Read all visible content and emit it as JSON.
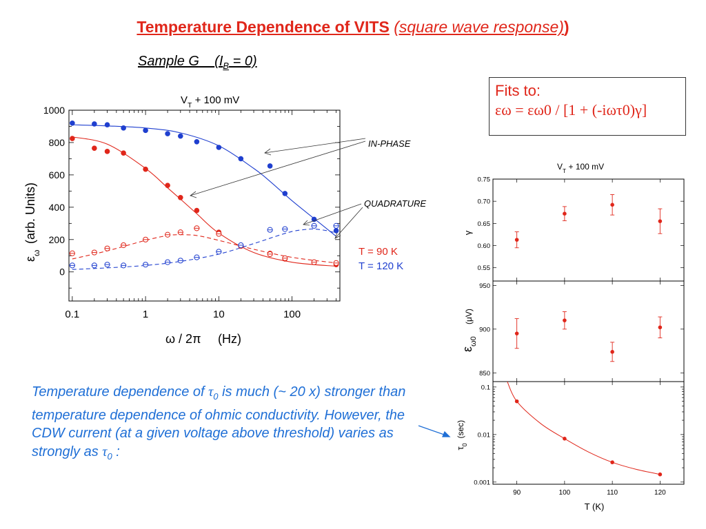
{
  "header": {
    "title_main": "Temperature Dependence of VITS",
    "title_sub": "(square wave response)",
    "title_close": ")",
    "sample": "Sample G",
    "sample_cond": "(I",
    "sample_cond_sub": "B",
    "sample_cond_end": " = 0)"
  },
  "fits": {
    "line1": "Fits to:",
    "formula": "εω = εω0 / [1 + (-iωτ0)γ]"
  },
  "note": {
    "text1": "Temperature dependence of ",
    "tau": "τ",
    "sub0": "0",
    "text2": " is much  (~ 20 x) stronger than temperature dependence of ohmic conductivity.  However, the CDW current (at a given voltage above threshold) varies as strongly as ",
    "text3": " :"
  },
  "colors": {
    "red": "#e0261a",
    "blue": "#1f3fcf",
    "note_blue": "#1f6fd6"
  },
  "chart_data": [
    {
      "type": "scatter",
      "title": "VT + 100 mV",
      "title_main": "V",
      "title_sub": "T",
      "title_rest": " + 100 mV",
      "xlabel": "ω / 2π",
      "xlabel_unit": "(Hz)",
      "ylabel": "εω   (arb. Units)",
      "ylabel_sym": "ε",
      "ylabel_sym_sub": "ω",
      "ylabel_text": "(arb. Units)",
      "xscale": "log",
      "xlim": [
        0.09,
        450
      ],
      "ylim": [
        -180,
        1000
      ],
      "xticks": [
        0.1,
        1,
        10,
        100
      ],
      "xtick_labels": [
        "0.1",
        "1",
        "10",
        "100"
      ],
      "yticks": [
        0,
        200,
        400,
        600,
        800,
        1000
      ],
      "ytick_labels": [
        "0",
        "200",
        "400",
        "600",
        "800",
        "1000"
      ],
      "annotations": {
        "in_phase": "IN-PHASE",
        "quadrature": "QUADRATURE"
      },
      "legend": [
        {
          "label": "T = 90 K",
          "color": "#e0261a"
        },
        {
          "label": "T = 120 K",
          "color": "#1f3fcf"
        }
      ],
      "series": [
        {
          "name": "T = 90 K",
          "component": "in-phase",
          "color": "#e0261a",
          "marker": "filled",
          "x": [
            0.1,
            0.2,
            0.3,
            0.5,
            1,
            2,
            3,
            5,
            10,
            20,
            50,
            80,
            200,
            400
          ],
          "y": [
            825,
            765,
            745,
            735,
            635,
            535,
            460,
            380,
            245,
            160,
            115,
            80,
            60,
            45
          ]
        },
        {
          "name": "T = 90 K",
          "component": "quadrature",
          "color": "#e0261a",
          "marker": "open",
          "x": [
            0.1,
            0.2,
            0.3,
            0.5,
            1,
            2,
            3,
            5,
            10,
            20,
            50,
            80,
            200,
            400
          ],
          "y": [
            115,
            120,
            145,
            165,
            200,
            230,
            245,
            270,
            235,
            160,
            110,
            85,
            60,
            55
          ]
        },
        {
          "name": "T = 120 K",
          "component": "in-phase",
          "color": "#1f3fcf",
          "marker": "filled",
          "x": [
            0.1,
            0.2,
            0.3,
            0.5,
            1,
            2,
            3,
            5,
            10,
            20,
            50,
            80,
            200,
            400
          ],
          "y": [
            920,
            915,
            910,
            890,
            875,
            855,
            840,
            805,
            770,
            700,
            655,
            485,
            325,
            255
          ]
        },
        {
          "name": "T = 120 K",
          "component": "quadrature",
          "color": "#1f3fcf",
          "marker": "open",
          "x": [
            0.1,
            0.2,
            0.3,
            0.5,
            1,
            2,
            3,
            5,
            10,
            20,
            50,
            80,
            200,
            400
          ],
          "y": [
            40,
            40,
            45,
            40,
            45,
            60,
            70,
            90,
            125,
            165,
            260,
            265,
            285,
            285
          ]
        }
      ],
      "fit_curves": [
        {
          "name": "T = 90 K",
          "component": "in-phase",
          "color": "#e0261a",
          "style": "solid",
          "x": [
            0.1,
            0.3,
            1,
            2,
            3,
            5,
            10,
            30,
            100,
            400
          ],
          "y": [
            835,
            790,
            640,
            520,
            450,
            360,
            240,
            120,
            60,
            35
          ]
        },
        {
          "name": "T = 90 K",
          "component": "quadrature",
          "color": "#e0261a",
          "style": "dashed",
          "x": [
            0.1,
            0.3,
            1,
            2,
            3,
            5,
            10,
            30,
            100,
            400
          ],
          "y": [
            80,
            130,
            195,
            225,
            230,
            225,
            195,
            140,
            90,
            55
          ]
        },
        {
          "name": "T = 120 K",
          "component": "in-phase",
          "color": "#1f3fcf",
          "style": "solid",
          "x": [
            0.1,
            0.3,
            1,
            3,
            10,
            30,
            50,
            100,
            200,
            400
          ],
          "y": [
            910,
            903,
            890,
            860,
            780,
            640,
            560,
            440,
            330,
            220
          ]
        },
        {
          "name": "T = 120 K",
          "component": "quadrature",
          "color": "#1f3fcf",
          "style": "dashed",
          "x": [
            0.1,
            0.3,
            1,
            3,
            10,
            30,
            60,
            100,
            150,
            200,
            300,
            400
          ],
          "y": [
            15,
            25,
            40,
            65,
            110,
            175,
            220,
            250,
            262,
            265,
            255,
            240
          ]
        }
      ]
    },
    {
      "type": "scatter",
      "title": "VT + 100 mV",
      "title_main": "V",
      "title_sub": "T",
      "title_rest": " + 100 mV",
      "xlabel": "T  (K)",
      "xlim": [
        85,
        125
      ],
      "xticks": [
        90,
        100,
        110,
        120
      ],
      "xtick_labels": [
        "90",
        "100",
        "110",
        "120"
      ],
      "color": "#e0261a",
      "panels": [
        {
          "name": "gamma",
          "ylabel": "γ",
          "ylim": [
            0.52,
            0.75
          ],
          "yticks": [
            0.55,
            0.6,
            0.65,
            0.7,
            0.75
          ],
          "ytick_labels": [
            "0.55",
            "0.60",
            "0.65",
            "0.70",
            "0.75"
          ],
          "x": [
            90,
            100,
            110,
            120
          ],
          "y": [
            0.613,
            0.672,
            0.692,
            0.655
          ],
          "yerr": [
            0.018,
            0.016,
            0.023,
            0.028
          ]
        },
        {
          "name": "eps0",
          "ylabel": "εω0   (μV)",
          "ylabel_sym": "ε",
          "ylabel_sym_sub": "ω0",
          "ylabel_unit": "(μV)",
          "ylim": [
            840,
            955
          ],
          "yticks": [
            850,
            900,
            950
          ],
          "ytick_labels": [
            "850",
            "900",
            "950"
          ],
          "x": [
            90,
            100,
            110,
            120
          ],
          "y": [
            895,
            910,
            874,
            902
          ],
          "yerr": [
            17,
            10,
            11,
            12
          ]
        },
        {
          "name": "tau0",
          "ylabel": "τ0  (sec)",
          "ylabel_sym": "τ",
          "ylabel_sym_sub": "0",
          "ylabel_unit": "(sec)",
          "yscale": "log",
          "ylim": [
            0.0009,
            0.13
          ],
          "yticks": [
            0.001,
            0.01,
            0.1
          ],
          "ytick_labels": [
            "0.001",
            "0.01",
            "0.1"
          ],
          "x": [
            90,
            100,
            110,
            120
          ],
          "y": [
            0.05,
            0.0082,
            0.0026,
            0.00145
          ],
          "fit": {
            "x": [
              88,
              90,
              95,
              100,
              105,
              110,
              115,
              120
            ],
            "y": [
              0.13,
              0.05,
              0.017,
              0.0082,
              0.0043,
              0.0026,
              0.00185,
              0.00145
            ]
          }
        }
      ]
    }
  ]
}
